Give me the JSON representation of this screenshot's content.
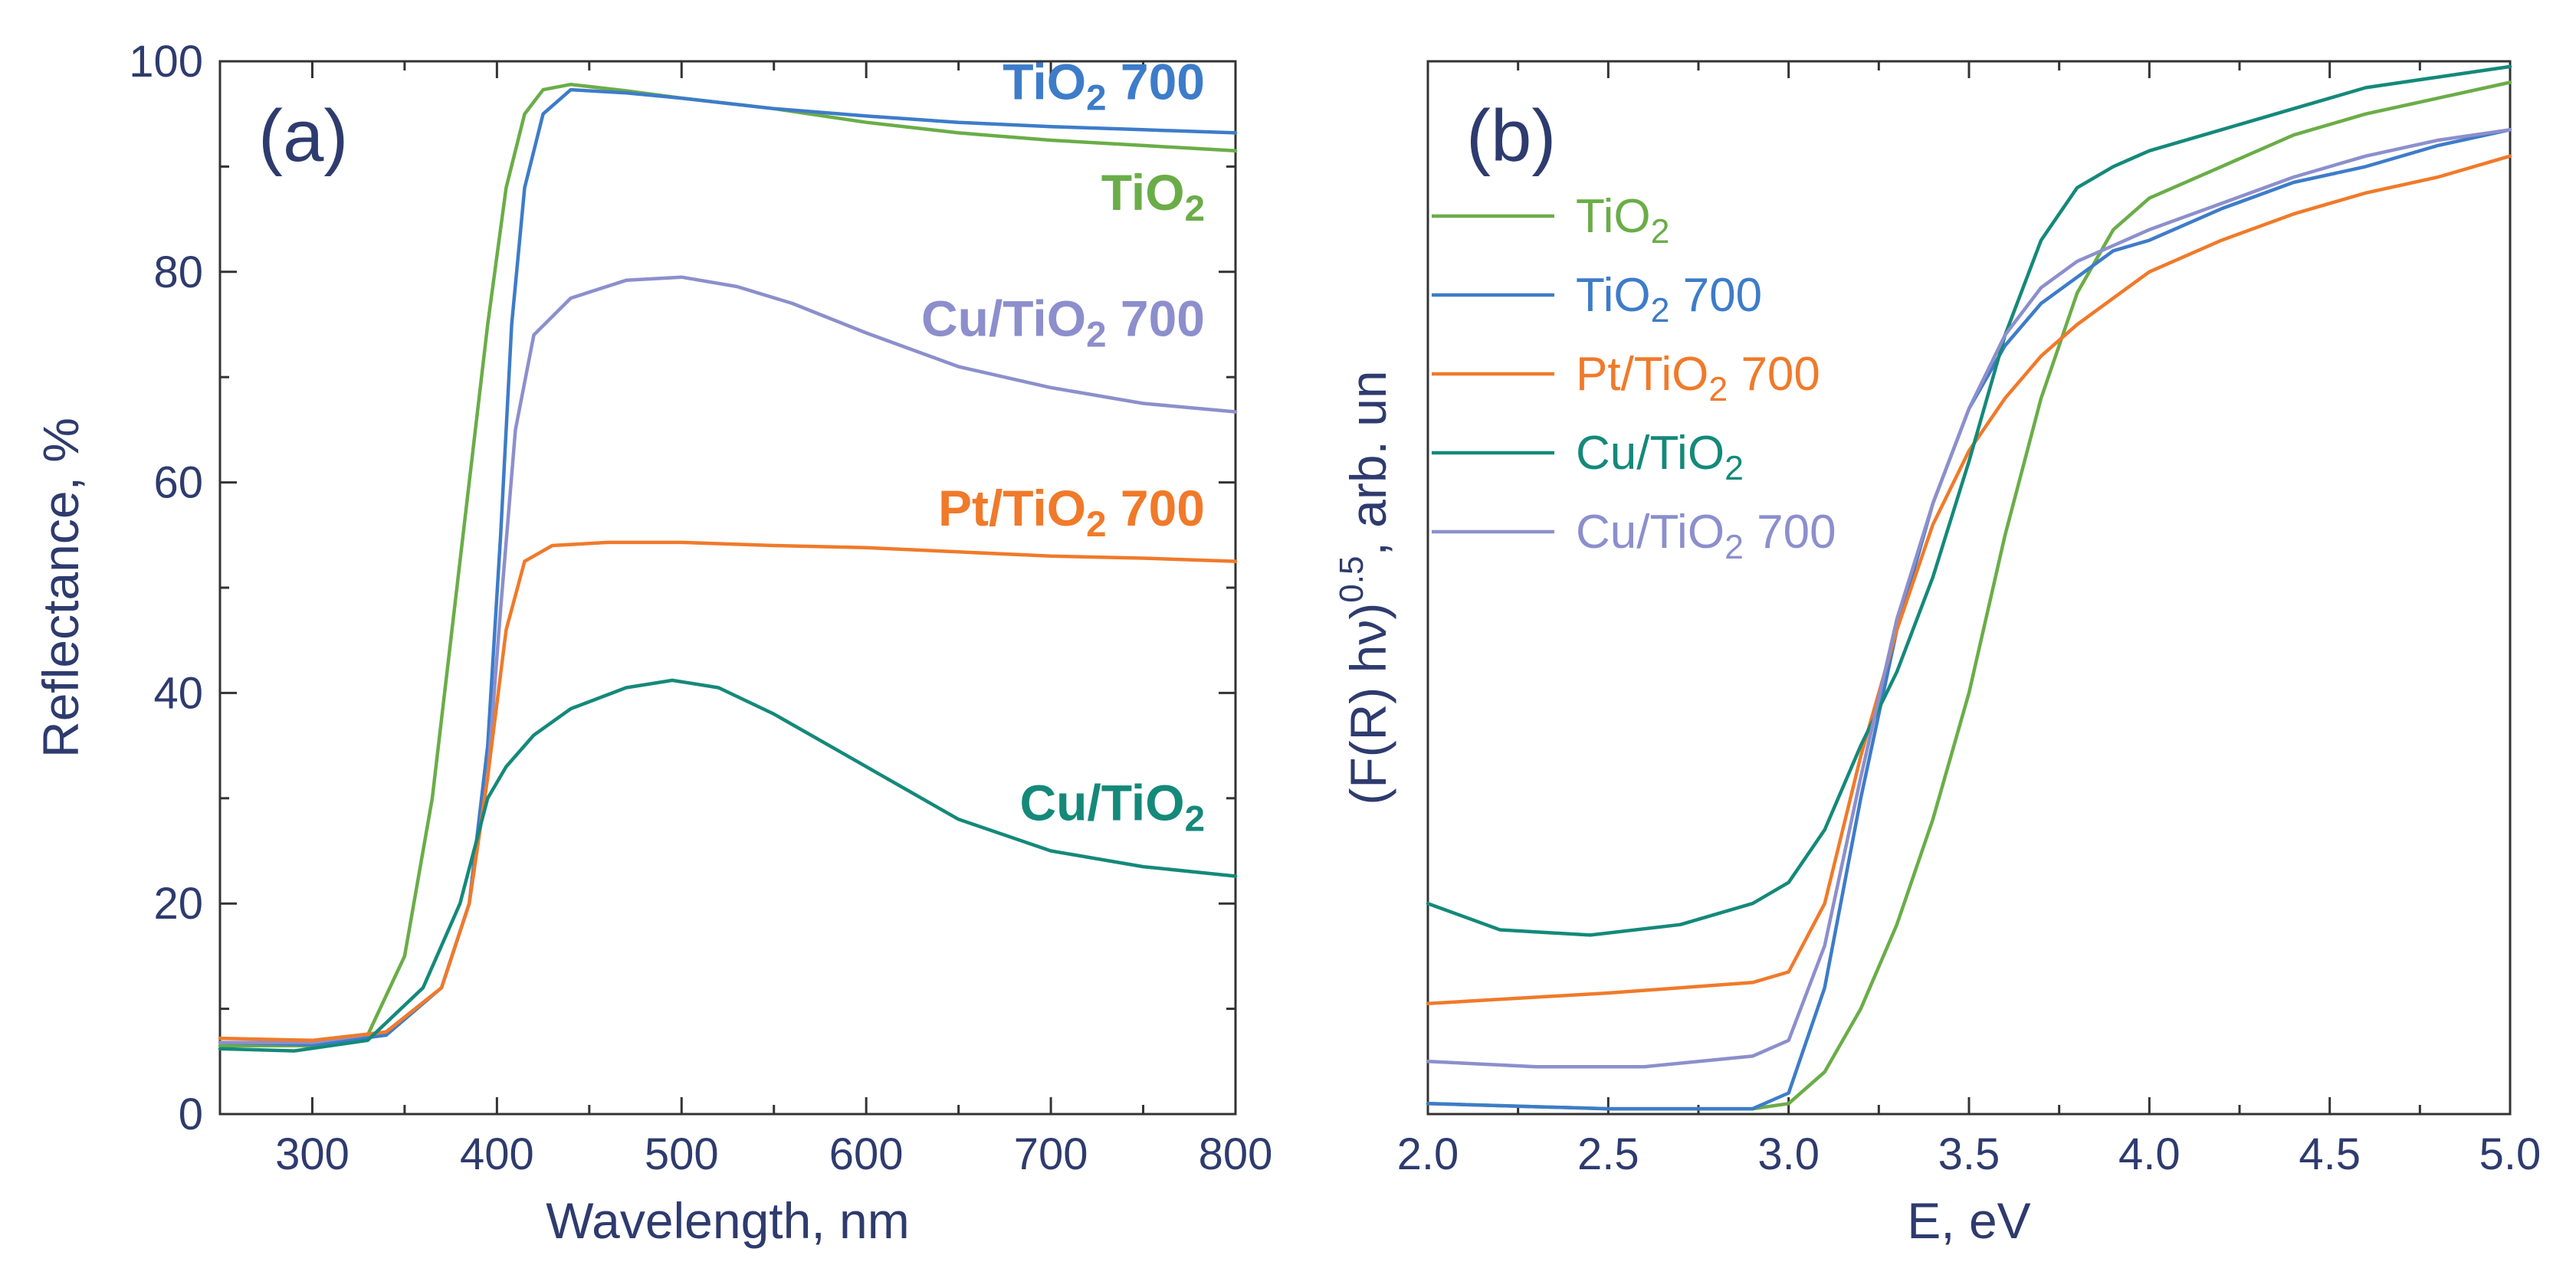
{
  "colors": {
    "TiO2": "#6aad48",
    "TiO2_700": "#3d7cc9",
    "Pt_TiO2_700": "#f07a2a",
    "Cu_TiO2": "#14897a",
    "Cu_TiO2_700": "#8c8fcc",
    "text": "#2e3b6e"
  },
  "chart_data": [
    {
      "type": "line",
      "panel_label": "(a)",
      "xlabel": "Wavelength, nm",
      "ylabel": "Reflectance, %",
      "xlim": [
        250,
        800
      ],
      "ylim": [
        0,
        100
      ],
      "xticks": [
        300,
        400,
        500,
        600,
        700,
        800
      ],
      "yticks": [
        0,
        20,
        40,
        60,
        80,
        100
      ],
      "series": [
        {
          "name": "TiO2",
          "label_main": "TiO",
          "label_sub": "2",
          "label_suffix": "",
          "label_anchor": [
            800,
            87.5
          ],
          "color_key": "TiO2",
          "points": [
            [
              250,
              6.5
            ],
            [
              300,
              6.5
            ],
            [
              330,
              7.5
            ],
            [
              350,
              15
            ],
            [
              365,
              30
            ],
            [
              375,
              45
            ],
            [
              385,
              60
            ],
            [
              395,
              75
            ],
            [
              405,
              88
            ],
            [
              415,
              95
            ],
            [
              425,
              97.3
            ],
            [
              440,
              97.8
            ],
            [
              470,
              97.2
            ],
            [
              500,
              96.5
            ],
            [
              550,
              95.5
            ],
            [
              600,
              94.2
            ],
            [
              650,
              93.2
            ],
            [
              700,
              92.5
            ],
            [
              750,
              92
            ],
            [
              800,
              91.5
            ]
          ]
        },
        {
          "name": "TiO2 700",
          "label_main": "TiO",
          "label_sub": "2",
          "label_suffix": " 700",
          "label_anchor": [
            800,
            98
          ],
          "color_key": "TiO2_700",
          "points": [
            [
              250,
              6.8
            ],
            [
              300,
              6.6
            ],
            [
              340,
              7.5
            ],
            [
              370,
              12
            ],
            [
              385,
              20
            ],
            [
              395,
              35
            ],
            [
              402,
              55
            ],
            [
              408,
              75
            ],
            [
              415,
              88
            ],
            [
              425,
              95
            ],
            [
              440,
              97.3
            ],
            [
              470,
              97
            ],
            [
              500,
              96.5
            ],
            [
              550,
              95.5
            ],
            [
              600,
              94.8
            ],
            [
              650,
              94.2
            ],
            [
              700,
              93.8
            ],
            [
              750,
              93.5
            ],
            [
              800,
              93.2
            ]
          ]
        },
        {
          "name": "Cu/TiO2 700",
          "label_main": "Cu/TiO",
          "label_sub": "2",
          "label_suffix": " 700",
          "label_anchor": [
            800,
            75.5
          ],
          "color_key": "Cu_TiO2_700",
          "points": [
            [
              250,
              6.8
            ],
            [
              300,
              6.8
            ],
            [
              340,
              7.8
            ],
            [
              370,
              12
            ],
            [
              385,
              20
            ],
            [
              395,
              32
            ],
            [
              402,
              48
            ],
            [
              410,
              65
            ],
            [
              420,
              74
            ],
            [
              440,
              77.5
            ],
            [
              470,
              79.2
            ],
            [
              500,
              79.5
            ],
            [
              530,
              78.6
            ],
            [
              560,
              77
            ],
            [
              600,
              74.2
            ],
            [
              650,
              71
            ],
            [
              700,
              69
            ],
            [
              750,
              67.5
            ],
            [
              800,
              66.7
            ]
          ]
        },
        {
          "name": "Pt/TiO2 700",
          "label_main": "Pt/TiO",
          "label_sub": "2",
          "label_suffix": " 700",
          "label_anchor": [
            800,
            57.5
          ],
          "color_key": "Pt_TiO2_700",
          "points": [
            [
              250,
              7.2
            ],
            [
              300,
              7
            ],
            [
              340,
              7.8
            ],
            [
              370,
              12
            ],
            [
              385,
              20
            ],
            [
              395,
              32
            ],
            [
              405,
              46
            ],
            [
              415,
              52.5
            ],
            [
              430,
              54
            ],
            [
              460,
              54.3
            ],
            [
              500,
              54.3
            ],
            [
              550,
              54
            ],
            [
              600,
              53.8
            ],
            [
              650,
              53.4
            ],
            [
              700,
              53
            ],
            [
              750,
              52.8
            ],
            [
              800,
              52.5
            ]
          ]
        },
        {
          "name": "Cu/TiO2",
          "label_main": "Cu/TiO",
          "label_sub": "2",
          "label_suffix": "",
          "label_anchor": [
            800,
            29.5
          ],
          "color_key": "Cu_TiO2",
          "points": [
            [
              250,
              6.2
            ],
            [
              290,
              6
            ],
            [
              330,
              7
            ],
            [
              360,
              12
            ],
            [
              380,
              20
            ],
            [
              395,
              30
            ],
            [
              405,
              33
            ],
            [
              420,
              36
            ],
            [
              440,
              38.5
            ],
            [
              470,
              40.5
            ],
            [
              495,
              41.2
            ],
            [
              520,
              40.5
            ],
            [
              550,
              38
            ],
            [
              580,
              35
            ],
            [
              600,
              33
            ],
            [
              650,
              28
            ],
            [
              700,
              25
            ],
            [
              750,
              23.5
            ],
            [
              800,
              22.6
            ]
          ]
        }
      ]
    },
    {
      "type": "line",
      "panel_label": "(b)",
      "xlabel": "E, eV",
      "ylabel": "(F(R) hν)0.5, arb. un",
      "ylabel_main": "(F(R) hν)",
      "ylabel_sup": "0.5",
      "ylabel_rest": ", arb. un",
      "xlim": [
        2.0,
        5.0
      ],
      "ylim": [
        0,
        100
      ],
      "xticks": [
        2.0,
        2.5,
        3.0,
        3.5,
        4.0,
        4.5,
        5.0
      ],
      "xtick_labels": [
        "2.0",
        "2.5",
        "3.0",
        "3.5",
        "4.0",
        "4.5",
        "5.0"
      ],
      "legend_position": "upper-left",
      "legend": [
        {
          "main": "TiO",
          "sub": "2",
          "suffix": "",
          "color_key": "TiO2"
        },
        {
          "main": "TiO",
          "sub": "2",
          "suffix": " 700",
          "color_key": "TiO2_700"
        },
        {
          "main": "Pt/TiO",
          "sub": "2",
          "suffix": " 700",
          "color_key": "Pt_TiO2_700"
        },
        {
          "main": "Cu/TiO",
          "sub": "2",
          "suffix": "",
          "color_key": "Cu_TiO2"
        },
        {
          "main": "Cu/TiO",
          "sub": "2",
          "suffix": " 700",
          "color_key": "Cu_TiO2_700"
        }
      ],
      "series": [
        {
          "name": "TiO2",
          "color_key": "TiO2",
          "points": [
            [
              2.0,
              1
            ],
            [
              2.5,
              0.5
            ],
            [
              2.9,
              0.5
            ],
            [
              3.0,
              1
            ],
            [
              3.1,
              4
            ],
            [
              3.2,
              10
            ],
            [
              3.3,
              18
            ],
            [
              3.4,
              28
            ],
            [
              3.5,
              40
            ],
            [
              3.6,
              55
            ],
            [
              3.7,
              68
            ],
            [
              3.8,
              78
            ],
            [
              3.9,
              84
            ],
            [
              4.0,
              87
            ],
            [
              4.2,
              90
            ],
            [
              4.4,
              93
            ],
            [
              4.6,
              95
            ],
            [
              4.8,
              96.5
            ],
            [
              5.0,
              98
            ]
          ]
        },
        {
          "name": "TiO2 700",
          "color_key": "TiO2_700",
          "points": [
            [
              2.0,
              1
            ],
            [
              2.5,
              0.5
            ],
            [
              2.9,
              0.5
            ],
            [
              3.0,
              2
            ],
            [
              3.1,
              12
            ],
            [
              3.2,
              30
            ],
            [
              3.3,
              46
            ],
            [
              3.4,
              58
            ],
            [
              3.5,
              67
            ],
            [
              3.6,
              73
            ],
            [
              3.7,
              77
            ],
            [
              3.8,
              79.5
            ],
            [
              3.9,
              82
            ],
            [
              4.0,
              83
            ],
            [
              4.2,
              86
            ],
            [
              4.4,
              88.5
            ],
            [
              4.6,
              90
            ],
            [
              4.8,
              92
            ],
            [
              5.0,
              93.5
            ]
          ]
        },
        {
          "name": "Pt/TiO2 700",
          "color_key": "Pt_TiO2_700",
          "points": [
            [
              2.0,
              10.5
            ],
            [
              2.5,
              11.5
            ],
            [
              2.9,
              12.5
            ],
            [
              3.0,
              13.5
            ],
            [
              3.1,
              20
            ],
            [
              3.2,
              34
            ],
            [
              3.3,
              46
            ],
            [
              3.4,
              56
            ],
            [
              3.5,
              63
            ],
            [
              3.6,
              68
            ],
            [
              3.7,
              72
            ],
            [
              3.8,
              75
            ],
            [
              3.9,
              77.5
            ],
            [
              4.0,
              80
            ],
            [
              4.2,
              83
            ],
            [
              4.4,
              85.5
            ],
            [
              4.6,
              87.5
            ],
            [
              4.8,
              89
            ],
            [
              5.0,
              91
            ]
          ]
        },
        {
          "name": "Cu/TiO2",
          "color_key": "Cu_TiO2",
          "points": [
            [
              2.0,
              20
            ],
            [
              2.2,
              17.5
            ],
            [
              2.45,
              17
            ],
            [
              2.7,
              18
            ],
            [
              2.9,
              20
            ],
            [
              3.0,
              22
            ],
            [
              3.1,
              27
            ],
            [
              3.2,
              35
            ],
            [
              3.3,
              42
            ],
            [
              3.4,
              51
            ],
            [
              3.5,
              62
            ],
            [
              3.6,
              74
            ],
            [
              3.7,
              83
            ],
            [
              3.8,
              88
            ],
            [
              3.9,
              90
            ],
            [
              4.0,
              91.5
            ],
            [
              4.2,
              93.5
            ],
            [
              4.4,
              95.5
            ],
            [
              4.6,
              97.5
            ],
            [
              4.8,
              98.5
            ],
            [
              5.0,
              99.5
            ]
          ]
        },
        {
          "name": "Cu/TiO2 700",
          "color_key": "Cu_TiO2_700",
          "points": [
            [
              2.0,
              5
            ],
            [
              2.3,
              4.5
            ],
            [
              2.6,
              4.5
            ],
            [
              2.9,
              5.5
            ],
            [
              3.0,
              7
            ],
            [
              3.1,
              16
            ],
            [
              3.2,
              32
            ],
            [
              3.3,
              47
            ],
            [
              3.4,
              58
            ],
            [
              3.5,
              67
            ],
            [
              3.6,
              74
            ],
            [
              3.7,
              78.5
            ],
            [
              3.8,
              81
            ],
            [
              3.9,
              82.5
            ],
            [
              4.0,
              84
            ],
            [
              4.2,
              86.5
            ],
            [
              4.4,
              89
            ],
            [
              4.6,
              91
            ],
            [
              4.8,
              92.5
            ],
            [
              5.0,
              93.5
            ]
          ]
        }
      ]
    }
  ]
}
